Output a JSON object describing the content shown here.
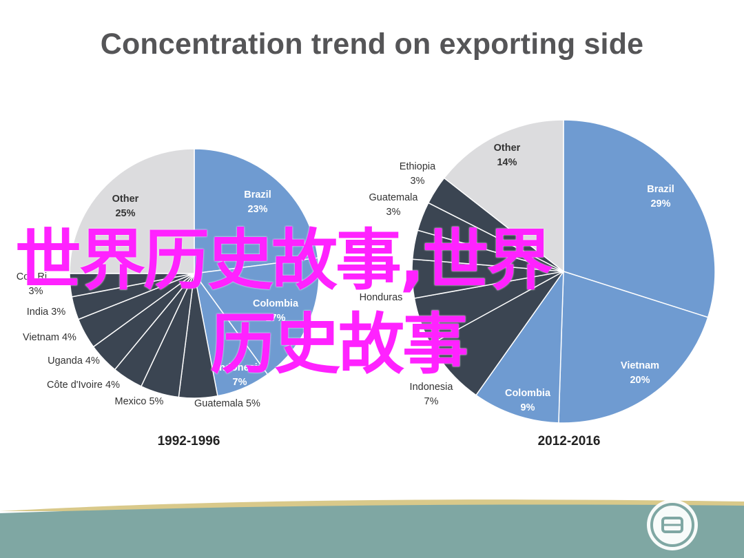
{
  "slide": {
    "title": "Concentration trend on exporting side",
    "watermark_line1": "世界历史故事,世界",
    "watermark_line2": "历史故事"
  },
  "colors": {
    "brazil": "#6f9bd1",
    "other": "#dcdcde",
    "dark_slice": "#3b4552",
    "edge": "#ffffff",
    "footer_teal": "#7fa7a3",
    "footer_gold": "#d9c98a",
    "watermark": "#ff22ff"
  },
  "chart_data": [
    {
      "type": "pie",
      "caption": "1992-1996",
      "slices": [
        {
          "label": "Brazil",
          "value": 23,
          "text": "23%",
          "color": "#6f9bd1"
        },
        {
          "label": "Colombia",
          "value": 17,
          "text": "17%",
          "color": "#6f9bd1"
        },
        {
          "label": "Indonesia",
          "value": 7,
          "text": "7%",
          "color": "#6f9bd1"
        },
        {
          "label": "Guatemala",
          "value": 5,
          "text": "5%",
          "color": "#3b4552"
        },
        {
          "label": "Mexico",
          "value": 5,
          "text": "5%",
          "color": "#3b4552"
        },
        {
          "label": "Côte d'Ivoire",
          "value": 4,
          "text": "4%",
          "color": "#3b4552"
        },
        {
          "label": "Uganda",
          "value": 4,
          "text": "4%",
          "color": "#3b4552"
        },
        {
          "label": "Vietnam",
          "value": 4,
          "text": "4%",
          "color": "#3b4552"
        },
        {
          "label": "India",
          "value": 3,
          "text": "3%",
          "color": "#3b4552"
        },
        {
          "label": "Costa Rica",
          "value": 3,
          "text": "3%",
          "color": "#3b4552"
        },
        {
          "label": "Other",
          "value": 25,
          "text": "25%",
          "color": "#dcdcde"
        }
      ],
      "visible_labels": [
        {
          "name": "Other",
          "pct": "25%",
          "place": "inside"
        },
        {
          "name": "Brazil",
          "pct": "23%",
          "place": "inside"
        },
        {
          "name": "Colombia",
          "pct": "17%",
          "place": "inside"
        },
        {
          "name": "Indonesia",
          "pct": "7%",
          "place": "inside"
        },
        {
          "name": "Guatemala",
          "pct": "5%",
          "place": "outside"
        },
        {
          "name": "Mexico",
          "pct": "5%",
          "place": "outside"
        },
        {
          "name": "Côte d'Ivoire",
          "pct": "4%",
          "place": "outside"
        },
        {
          "name": "Uganda",
          "pct": "4%",
          "place": "outside"
        },
        {
          "name": "Vietnam",
          "pct": "4%",
          "place": "outside"
        },
        {
          "name": "India",
          "pct": "3%",
          "place": "outside"
        },
        {
          "name": "Co...Ri...",
          "pct": "3%",
          "place": "outside"
        }
      ]
    },
    {
      "type": "pie",
      "caption": "2012-2016",
      "slices": [
        {
          "label": "Brazil",
          "value": 29,
          "text": "29%",
          "color": "#6f9bd1"
        },
        {
          "label": "Vietnam",
          "value": 20,
          "text": "20%",
          "color": "#6f9bd1"
        },
        {
          "label": "Colombia",
          "value": 9,
          "text": "9%",
          "color": "#6f9bd1"
        },
        {
          "label": "Indonesia",
          "value": 7,
          "text": "7%",
          "color": "#3b4552"
        },
        {
          "label": "India",
          "value": 5,
          "text": "5%",
          "color": "#3b4552"
        },
        {
          "label": "Honduras",
          "value": 4,
          "text": "4%",
          "color": "#3b4552"
        },
        {
          "label": "Uganda",
          "value": 3,
          "text": "3%",
          "color": "#3b4552"
        },
        {
          "label": "Guatemala",
          "value": 3,
          "text": "3%",
          "color": "#3b4552"
        },
        {
          "label": "Ethiopia",
          "value": 3,
          "text": "3%",
          "color": "#3b4552"
        },
        {
          "label": "Other",
          "value": 14,
          "text": "14%",
          "color": "#dcdcde"
        }
      ],
      "visible_labels": [
        {
          "name": "Other",
          "pct": "14%",
          "place": "inside"
        },
        {
          "name": "Brazil",
          "pct": "29%",
          "place": "inside"
        },
        {
          "name": "Vietnam",
          "pct": "20%",
          "place": "inside"
        },
        {
          "name": "Colombia",
          "pct": "9%",
          "place": "inside"
        },
        {
          "name": "Indonesia",
          "pct": "7%",
          "place": "outside"
        },
        {
          "name": "Honduras",
          "pct": "",
          "place": "outside"
        },
        {
          "name": "Ethiopia",
          "pct": "3%",
          "place": "outside"
        },
        {
          "name": "Guatemala",
          "pct": "3%",
          "place": "outside"
        }
      ]
    }
  ]
}
